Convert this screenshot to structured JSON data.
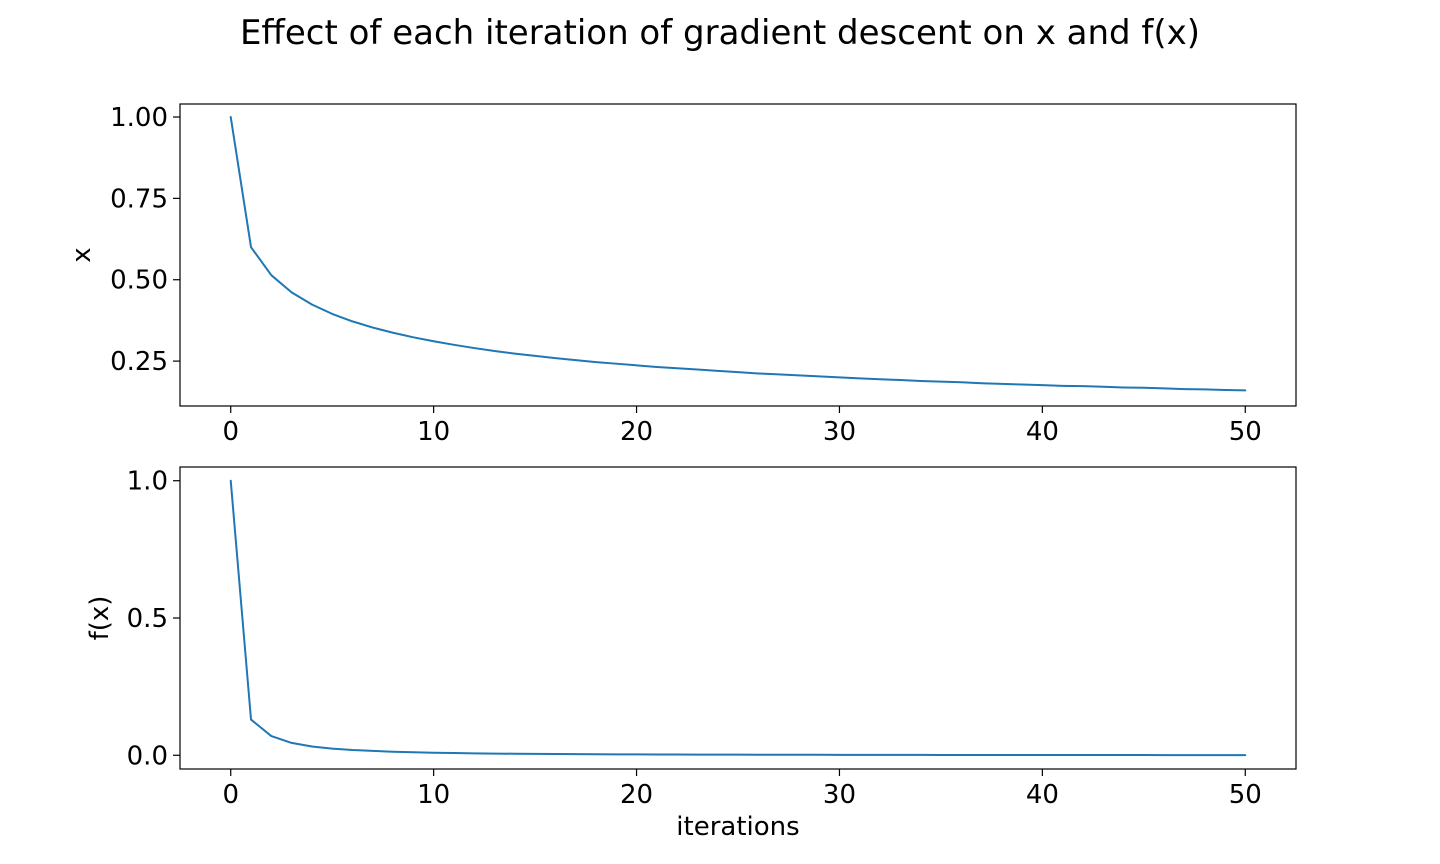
{
  "chart_data": {
    "title": "Effect of each iteration of gradient descent on x and f(x)",
    "line_color": "#1f77b4",
    "panels": [
      {
        "type": "line",
        "ylabel": "x",
        "xlabel": "",
        "xlim": [
          -2.5,
          52.5
        ],
        "ylim": [
          0.112,
          1.04
        ],
        "xticks": [
          0,
          10,
          20,
          30,
          40,
          50
        ],
        "xtick_labels": [
          "0",
          "10",
          "20",
          "30",
          "40",
          "50"
        ],
        "yticks": [
          0.25,
          0.5,
          0.75,
          1.0
        ],
        "ytick_labels": [
          "0.25",
          "0.50",
          "0.75",
          "1.00"
        ],
        "x": [
          0,
          1,
          2,
          3,
          4,
          5,
          6,
          7,
          8,
          9,
          10,
          11,
          12,
          13,
          14,
          15,
          16,
          17,
          18,
          19,
          20,
          21,
          22,
          23,
          24,
          25,
          26,
          27,
          28,
          29,
          30,
          31,
          32,
          33,
          34,
          35,
          36,
          37,
          38,
          39,
          40,
          41,
          42,
          43,
          44,
          45,
          46,
          47,
          48,
          49,
          50
        ],
        "y": [
          1.0,
          0.6,
          0.514,
          0.461,
          0.424,
          0.395,
          0.372,
          0.353,
          0.337,
          0.323,
          0.311,
          0.3,
          0.29,
          0.281,
          0.273,
          0.266,
          0.259,
          0.253,
          0.247,
          0.242,
          0.237,
          0.232,
          0.228,
          0.224,
          0.22,
          0.216,
          0.212,
          0.209,
          0.206,
          0.203,
          0.2,
          0.197,
          0.194,
          0.192,
          0.189,
          0.187,
          0.185,
          0.182,
          0.18,
          0.178,
          0.176,
          0.174,
          0.173,
          0.171,
          0.169,
          0.168,
          0.166,
          0.164,
          0.163,
          0.161,
          0.16
        ]
      },
      {
        "type": "line",
        "ylabel": "f(x)",
        "xlabel": "iterations",
        "xlim": [
          -2.5,
          52.5
        ],
        "ylim": [
          -0.05,
          1.05
        ],
        "xticks": [
          0,
          10,
          20,
          30,
          40,
          50
        ],
        "xtick_labels": [
          "0",
          "10",
          "20",
          "30",
          "40",
          "50"
        ],
        "yticks": [
          0.0,
          0.5,
          1.0
        ],
        "ytick_labels": [
          "0.0",
          "0.5",
          "1.0"
        ],
        "x": [
          0,
          1,
          2,
          3,
          4,
          5,
          6,
          7,
          8,
          9,
          10,
          11,
          12,
          13,
          14,
          15,
          16,
          17,
          18,
          19,
          20,
          21,
          22,
          23,
          24,
          25,
          26,
          27,
          28,
          29,
          30,
          31,
          32,
          33,
          34,
          35,
          36,
          37,
          38,
          39,
          40,
          41,
          42,
          43,
          44,
          45,
          46,
          47,
          48,
          49,
          50
        ],
        "y": [
          1.0,
          0.13,
          0.07,
          0.045,
          0.032,
          0.024,
          0.019,
          0.016,
          0.013,
          0.011,
          0.0094,
          0.0081,
          0.0071,
          0.0062,
          0.0056,
          0.005,
          0.0045,
          0.0041,
          0.0037,
          0.0034,
          0.0032,
          0.0029,
          0.0027,
          0.0025,
          0.0023,
          0.0022,
          0.002,
          0.0019,
          0.0018,
          0.0017,
          0.0016,
          0.0015,
          0.0014,
          0.0014,
          0.0013,
          0.0012,
          0.0012,
          0.0011,
          0.001,
          0.001,
          0.001,
          0.0009,
          0.0009,
          0.0008,
          0.0008,
          0.0008,
          0.0007,
          0.0007,
          0.0007,
          0.0007,
          0.0006
        ]
      }
    ]
  }
}
